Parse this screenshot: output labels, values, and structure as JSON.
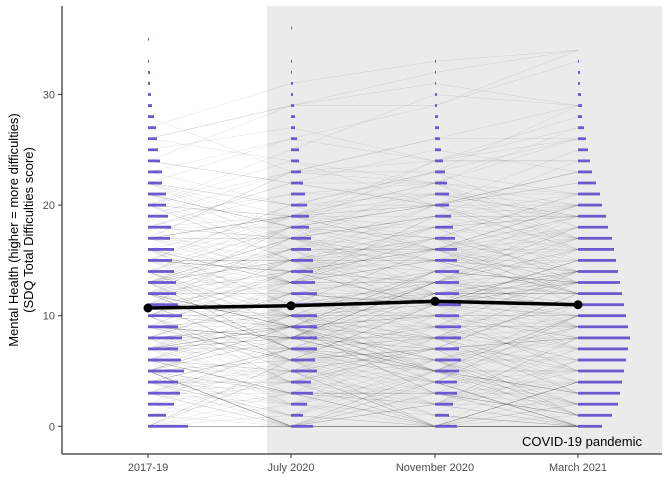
{
  "chart_data": {
    "type": "line",
    "title": "",
    "xlabel": "",
    "ylabel_lines": [
      "Mental Health (higher = more difficulties)",
      "(SDQ Total Difficulties score)"
    ],
    "categories": [
      "2017-19",
      "July 2020",
      "November 2020",
      "March 2021"
    ],
    "ylim": [
      -2.5,
      38
    ],
    "yticks": [
      0,
      10,
      20,
      30
    ],
    "grid": false,
    "shaded_region": {
      "from_category": "July 2020",
      "label": "COVID-19 pandemic",
      "color": "#ebebeb"
    },
    "mean_series": {
      "values": [
        10.7,
        10.9,
        11.3,
        11.0
      ],
      "color": "#000000"
    },
    "distribution_color": "#6a5acd",
    "distributions": [
      {
        "category": "2017-19",
        "counts": [
          40,
          18,
          26,
          32,
          30,
          36,
          33,
          30,
          34,
          30,
          34,
          30,
          28,
          28,
          26,
          24,
          26,
          22,
          23,
          20,
          18,
          18,
          14,
          14,
          12,
          10,
          9,
          8,
          6,
          4,
          3,
          2,
          2,
          1,
          0,
          1
        ]
      },
      {
        "category": "July 2020",
        "counts": [
          22,
          12,
          16,
          22,
          20,
          26,
          24,
          26,
          26,
          26,
          26,
          28,
          26,
          24,
          22,
          22,
          20,
          20,
          18,
          18,
          16,
          14,
          12,
          10,
          8,
          8,
          6,
          4,
          4,
          3,
          2,
          2,
          1,
          1,
          0,
          0,
          1
        ]
      },
      {
        "category": "November 2020",
        "counts": [
          22,
          14,
          18,
          22,
          22,
          24,
          26,
          24,
          26,
          26,
          24,
          26,
          24,
          24,
          24,
          22,
          22,
          20,
          18,
          16,
          14,
          14,
          12,
          10,
          8,
          6,
          5,
          4,
          3,
          2,
          2,
          1,
          1,
          1
        ]
      },
      {
        "category": "March 2021",
        "counts": [
          24,
          34,
          40,
          42,
          44,
          46,
          48,
          50,
          52,
          50,
          48,
          46,
          44,
          42,
          40,
          38,
          36,
          34,
          30,
          28,
          24,
          22,
          18,
          14,
          12,
          10,
          8,
          6,
          4,
          4,
          3,
          2,
          2,
          1
        ]
      }
    ]
  }
}
